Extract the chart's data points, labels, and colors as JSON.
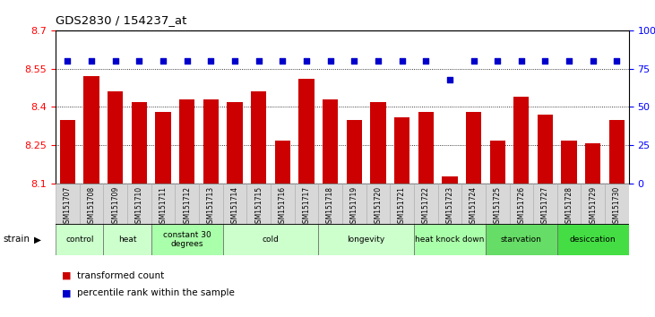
{
  "title": "GDS2830 / 154237_at",
  "samples": [
    "GSM151707",
    "GSM151708",
    "GSM151709",
    "GSM151710",
    "GSM151711",
    "GSM151712",
    "GSM151713",
    "GSM151714",
    "GSM151715",
    "GSM151716",
    "GSM151717",
    "GSM151718",
    "GSM151719",
    "GSM151720",
    "GSM151721",
    "GSM151722",
    "GSM151723",
    "GSM151724",
    "GSM151725",
    "GSM151726",
    "GSM151727",
    "GSM151728",
    "GSM151729",
    "GSM151730"
  ],
  "bar_values": [
    8.35,
    8.52,
    8.46,
    8.42,
    8.38,
    8.43,
    8.43,
    8.42,
    8.46,
    8.27,
    8.51,
    8.43,
    8.35,
    8.42,
    8.36,
    8.38,
    8.13,
    8.38,
    8.27,
    8.44,
    8.37,
    8.27,
    8.26,
    8.35
  ],
  "perc_y": [
    80,
    80,
    80,
    80,
    80,
    80,
    80,
    80,
    80,
    80,
    80,
    80,
    80,
    80,
    80,
    80,
    68,
    80,
    80,
    80,
    80,
    80,
    80,
    80
  ],
  "bar_color": "#CC0000",
  "dot_color": "#0000CC",
  "ylim_left": [
    8.1,
    8.7
  ],
  "ylim_right": [
    0,
    100
  ],
  "yticks_left": [
    8.1,
    8.25,
    8.4,
    8.55,
    8.7
  ],
  "yticks_right": [
    0,
    25,
    50,
    75,
    100
  ],
  "ytick_labels_right": [
    "0",
    "25",
    "50",
    "75",
    "100%"
  ],
  "groups": [
    {
      "label": "control",
      "start": 0,
      "end": 2,
      "color": "#ccffcc"
    },
    {
      "label": "heat",
      "start": 2,
      "end": 4,
      "color": "#ccffcc"
    },
    {
      "label": "constant 30\ndegrees",
      "start": 4,
      "end": 7,
      "color": "#aaffaa"
    },
    {
      "label": "cold",
      "start": 7,
      "end": 11,
      "color": "#ccffcc"
    },
    {
      "label": "longevity",
      "start": 11,
      "end": 15,
      "color": "#ccffcc"
    },
    {
      "label": "heat knock down",
      "start": 15,
      "end": 18,
      "color": "#aaffaa"
    },
    {
      "label": "starvation",
      "start": 18,
      "end": 21,
      "color": "#66dd66"
    },
    {
      "label": "desiccation",
      "start": 21,
      "end": 24,
      "color": "#44dd44"
    }
  ]
}
